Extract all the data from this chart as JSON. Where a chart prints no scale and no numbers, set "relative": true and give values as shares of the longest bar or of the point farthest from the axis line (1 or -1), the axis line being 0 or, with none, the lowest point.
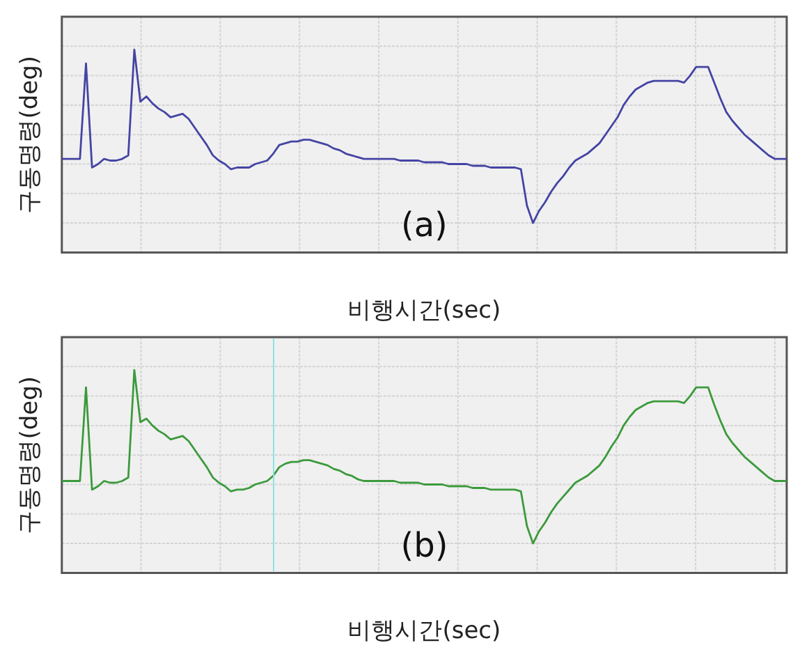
{
  "chart_data": [
    {
      "type": "line",
      "xlabel": "비행시간(sec)",
      "ylabel": "구동명령(deg)",
      "annotations": [
        "(a)"
      ],
      "relative": true,
      "grid": true,
      "categories": [
        null,
        null,
        null,
        null,
        null,
        null,
        null,
        null,
        null,
        null,
        null,
        null,
        null,
        null,
        null,
        null,
        null,
        null,
        null,
        null,
        null,
        null,
        null,
        null,
        null,
        null,
        null,
        null,
        null,
        null,
        null,
        null,
        null,
        null,
        null,
        null,
        null,
        null,
        null,
        null,
        null,
        null,
        null,
        null,
        null,
        null,
        null,
        null,
        null,
        null,
        null,
        null,
        null,
        null,
        null,
        null,
        null,
        null,
        null,
        null,
        null,
        null,
        null,
        null,
        null,
        null,
        null,
        null,
        null,
        null,
        null,
        null,
        null,
        null,
        null,
        null,
        null,
        null,
        null,
        null,
        null,
        null,
        null,
        null,
        null,
        null,
        null,
        null,
        null,
        null,
        null,
        null,
        null,
        null,
        null,
        null,
        null,
        null,
        null,
        null,
        null,
        null,
        null,
        null,
        null,
        null,
        null,
        null,
        null,
        null,
        null,
        null,
        null,
        null,
        null,
        null,
        null,
        null,
        null,
        null,
        null
      ],
      "series": [
        {
          "color": "#4444a4",
          "values": [
            0.37,
            0.37,
            0.37,
            0.37,
            0.92,
            0.32,
            0.34,
            0.37,
            0.36,
            0.36,
            0.37,
            0.39,
            1,
            0.7,
            0.73,
            0.69,
            0.66,
            0.64,
            0.61,
            0.62,
            0.63,
            0.6,
            0.55,
            0.5,
            0.45,
            0.39,
            0.36,
            0.34,
            0.31,
            0.32,
            0.32,
            0.32,
            0.34,
            0.35,
            0.36,
            0.4,
            0.45,
            0.46,
            0.47,
            0.47,
            0.48,
            0.48,
            0.47,
            0.46,
            0.45,
            0.43,
            0.42,
            0.4,
            0.39,
            0.38,
            0.37,
            0.37,
            0.37,
            0.37,
            0.37,
            0.37,
            0.36,
            0.36,
            0.36,
            0.36,
            0.35,
            0.35,
            0.35,
            0.35,
            0.34,
            0.34,
            0.34,
            0.34,
            0.33,
            0.33,
            0.33,
            0.32,
            0.32,
            0.32,
            0.32,
            0.32,
            0.31,
            0.1,
            0,
            0.07,
            0.12,
            0.18,
            0.23,
            0.27,
            0.32,
            0.36,
            0.38,
            0.4,
            0.43,
            0.46,
            0.51,
            0.56,
            0.61,
            0.68,
            0.73,
            0.77,
            0.79,
            0.81,
            0.82,
            0.82,
            0.82,
            0.82,
            0.82,
            0.81,
            0.85,
            0.9,
            0.9,
            0.9,
            0.81,
            0.72,
            0.64,
            0.59,
            0.55,
            0.51,
            0.48,
            0.45,
            0.42,
            0.39,
            0.37,
            0.37,
            0.37
          ]
        }
      ]
    },
    {
      "type": "line",
      "xlabel": "비행시간(sec)",
      "ylabel": "구동명령(deg)",
      "annotations": [
        "(b)"
      ],
      "relative": true,
      "grid": true,
      "categories": [
        null,
        null,
        null,
        null,
        null,
        null,
        null,
        null,
        null,
        null,
        null,
        null,
        null,
        null,
        null,
        null,
        null,
        null,
        null,
        null,
        null,
        null,
        null,
        null,
        null,
        null,
        null,
        null,
        null,
        null,
        null,
        null,
        null,
        null,
        null,
        null,
        null,
        null,
        null,
        null,
        null,
        null,
        null,
        null,
        null,
        null,
        null,
        null,
        null,
        null,
        null,
        null,
        null,
        null,
        null,
        null,
        null,
        null,
        null,
        null,
        null,
        null,
        null,
        null,
        null,
        null,
        null,
        null,
        null,
        null,
        null,
        null,
        null,
        null,
        null,
        null,
        null,
        null,
        null,
        null,
        null,
        null,
        null,
        null,
        null,
        null,
        null,
        null,
        null,
        null,
        null,
        null,
        null,
        null,
        null,
        null,
        null,
        null,
        null,
        null,
        null,
        null,
        null,
        null,
        null,
        null,
        null,
        null,
        null,
        null,
        null,
        null,
        null,
        null,
        null,
        null,
        null,
        null,
        null,
        null,
        null
      ],
      "series": [
        {
          "color": "#3c9a3c",
          "values": [
            0.36,
            0.36,
            0.36,
            0.36,
            0.9,
            0.31,
            0.33,
            0.36,
            0.35,
            0.35,
            0.36,
            0.38,
            1,
            0.7,
            0.72,
            0.68,
            0.65,
            0.63,
            0.6,
            0.61,
            0.62,
            0.59,
            0.54,
            0.49,
            0.44,
            0.38,
            0.35,
            0.33,
            0.3,
            0.31,
            0.31,
            0.32,
            0.34,
            0.35,
            0.36,
            0.39,
            0.44,
            0.46,
            0.47,
            0.47,
            0.48,
            0.48,
            0.47,
            0.46,
            0.45,
            0.43,
            0.42,
            0.4,
            0.39,
            0.37,
            0.36,
            0.36,
            0.36,
            0.36,
            0.36,
            0.36,
            0.35,
            0.35,
            0.35,
            0.35,
            0.34,
            0.34,
            0.34,
            0.34,
            0.33,
            0.33,
            0.33,
            0.33,
            0.32,
            0.32,
            0.32,
            0.31,
            0.31,
            0.31,
            0.31,
            0.31,
            0.3,
            0.1,
            0,
            0.07,
            0.12,
            0.18,
            0.23,
            0.27,
            0.31,
            0.35,
            0.37,
            0.39,
            0.42,
            0.45,
            0.5,
            0.56,
            0.61,
            0.68,
            0.73,
            0.77,
            0.79,
            0.81,
            0.82,
            0.82,
            0.82,
            0.82,
            0.82,
            0.81,
            0.85,
            0.9,
            0.9,
            0.9,
            0.8,
            0.71,
            0.63,
            0.58,
            0.54,
            0.5,
            0.47,
            0.44,
            0.41,
            0.38,
            0.36,
            0.36,
            0.36
          ]
        }
      ]
    }
  ]
}
